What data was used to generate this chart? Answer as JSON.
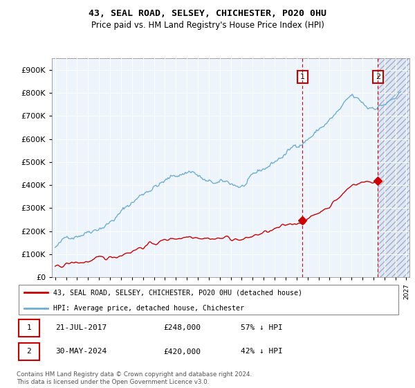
{
  "title": "43, SEAL ROAD, SELSEY, CHICHESTER, PO20 0HU",
  "subtitle": "Price paid vs. HM Land Registry's House Price Index (HPI)",
  "hpi_color": "#6baed6",
  "price_color": "#cc0000",
  "legend_line1": "43, SEAL ROAD, SELSEY, CHICHESTER, PO20 0HU (detached house)",
  "legend_line2": "HPI: Average price, detached house, Chichester",
  "table_row1": [
    "1",
    "21-JUL-2017",
    "£248,000",
    "57% ↓ HPI"
  ],
  "table_row2": [
    "2",
    "30-MAY-2024",
    "£420,000",
    "42% ↓ HPI"
  ],
  "footnote": "Contains HM Land Registry data © Crown copyright and database right 2024.\nThis data is licensed under the Open Government Licence v3.0.",
  "ylim": [
    0,
    950000
  ],
  "yticks": [
    0,
    100000,
    200000,
    300000,
    400000,
    500000,
    600000,
    700000,
    800000,
    900000
  ],
  "vline1_x": 2017.54,
  "vline2_x": 2024.41,
  "sale1_y": 248000,
  "sale2_y": 420000,
  "xmin": 1995,
  "xmax": 2027
}
